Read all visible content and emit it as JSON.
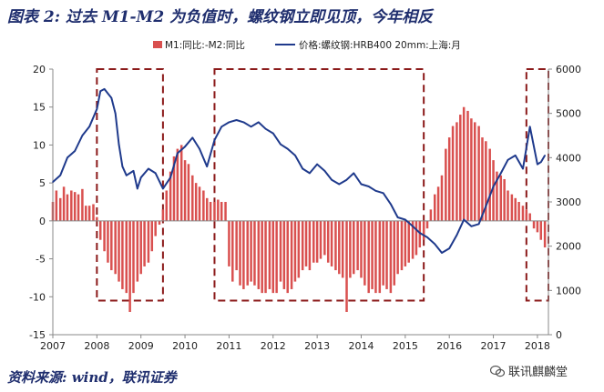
{
  "title": "图表 2:  过去 M1-M2 为负值时，螺纹钢立即见顶，今年相反",
  "source": "资料来源: wind，联讯证券",
  "watermark": "联讯麒麟堂",
  "colors": {
    "bar": "#d9504f",
    "line": "#1f3a8c",
    "box": "#8b1a1a",
    "axis": "#888888"
  },
  "chart_data": {
    "type": "bar+line",
    "title": "",
    "legend": [
      "M1:同比:-M2:同比",
      "价格:螺纹钢:HRB400  20mm:上海:月"
    ],
    "legend_position": "top",
    "x_ticks": [
      "2007",
      "2008",
      "2009",
      "2010",
      "2011",
      "2012",
      "2013",
      "2014",
      "2015",
      "2016",
      "2017",
      "2018"
    ],
    "x_range": [
      2007.0,
      2018.25
    ],
    "y_left": {
      "ticks": [
        20,
        15,
        10,
        5,
        0,
        -5,
        -10,
        -15
      ],
      "range": [
        -15,
        20
      ]
    },
    "y_right": {
      "ticks": [
        6000,
        5000,
        4000,
        3000,
        2000,
        1000,
        0
      ],
      "range": [
        0,
        6000
      ]
    },
    "dashed_boxes": [
      {
        "x": [
          2008.0,
          2009.5
        ],
        "y": [
          -10.5,
          20
        ]
      },
      {
        "x": [
          2010.67,
          2015.42
        ],
        "y": [
          -10.5,
          20
        ]
      },
      {
        "x": [
          2017.75,
          2018.25
        ],
        "y": [
          -10.5,
          20
        ]
      }
    ],
    "series": [
      {
        "name": "M1:同比:-M2:同比",
        "kind": "bar",
        "x": [
          2007.0,
          2007.08,
          2007.17,
          2007.25,
          2007.33,
          2007.42,
          2007.5,
          2007.58,
          2007.67,
          2007.75,
          2007.83,
          2007.92,
          2008.0,
          2008.08,
          2008.17,
          2008.25,
          2008.33,
          2008.42,
          2008.5,
          2008.58,
          2008.67,
          2008.75,
          2008.83,
          2008.92,
          2009.0,
          2009.08,
          2009.17,
          2009.25,
          2009.33,
          2009.42,
          2009.5,
          2009.58,
          2009.67,
          2009.75,
          2009.83,
          2009.92,
          2010.0,
          2010.08,
          2010.17,
          2010.25,
          2010.33,
          2010.42,
          2010.5,
          2010.58,
          2010.67,
          2010.75,
          2010.83,
          2010.92,
          2011.0,
          2011.08,
          2011.17,
          2011.25,
          2011.33,
          2011.42,
          2011.5,
          2011.58,
          2011.67,
          2011.75,
          2011.83,
          2011.92,
          2012.0,
          2012.08,
          2012.17,
          2012.25,
          2012.33,
          2012.42,
          2012.5,
          2012.58,
          2012.67,
          2012.75,
          2012.83,
          2012.92,
          2013.0,
          2013.08,
          2013.17,
          2013.25,
          2013.33,
          2013.42,
          2013.5,
          2013.58,
          2013.67,
          2013.75,
          2013.83,
          2013.92,
          2014.0,
          2014.08,
          2014.17,
          2014.25,
          2014.33,
          2014.42,
          2014.5,
          2014.58,
          2014.67,
          2014.75,
          2014.83,
          2014.92,
          2015.0,
          2015.08,
          2015.17,
          2015.25,
          2015.33,
          2015.42,
          2015.5,
          2015.58,
          2015.67,
          2015.75,
          2015.83,
          2015.92,
          2016.0,
          2016.08,
          2016.17,
          2016.25,
          2016.33,
          2016.42,
          2016.5,
          2016.58,
          2016.67,
          2016.75,
          2016.83,
          2016.92,
          2017.0,
          2017.08,
          2017.17,
          2017.25,
          2017.33,
          2017.42,
          2017.5,
          2017.58,
          2017.67,
          2017.75,
          2017.83,
          2017.92,
          2018.0,
          2018.08,
          2018.17
        ],
        "values": [
          2.5,
          4.0,
          3.0,
          4.5,
          3.5,
          4.0,
          3.8,
          3.5,
          4.2,
          2.0,
          2.0,
          2.2,
          0.5,
          -2.5,
          -4.0,
          -5.5,
          -6.5,
          -7.0,
          -8.0,
          -9.0,
          -9.5,
          -12.0,
          -9.5,
          -8.0,
          -7.0,
          -6.0,
          -5.5,
          -4.0,
          -2.0,
          -0.5,
          1.5,
          4.0,
          6.5,
          8.5,
          9.5,
          10.0,
          8.0,
          7.5,
          6.0,
          5.0,
          4.5,
          4.0,
          3.0,
          2.5,
          2.5,
          2.8,
          2.5,
          2.5,
          -6.0,
          -8.0,
          -6.5,
          -8.5,
          -9.0,
          -8.5,
          -8.0,
          -8.5,
          -9.0,
          -9.5,
          -9.5,
          -9.0,
          -9.5,
          -9.5,
          -8.0,
          -9.0,
          -9.5,
          -9.0,
          -8.0,
          -7.5,
          -6.5,
          -6.0,
          -6.5,
          -5.5,
          -5.5,
          -5.0,
          -4.5,
          -5.5,
          -6.0,
          -6.5,
          -7.0,
          -7.5,
          -12.0,
          -7.5,
          -7.0,
          -6.5,
          -7.5,
          -8.5,
          -9.5,
          -9.0,
          -9.5,
          -9.5,
          -8.5,
          -9.0,
          -9.5,
          -8.5,
          -7.0,
          -6.5,
          -6.0,
          -5.5,
          -5.0,
          -4.5,
          -3.5,
          -2.5,
          -1.0,
          1.5,
          3.5,
          4.5,
          6.0,
          9.5,
          11.0,
          12.5,
          13.0,
          14.0,
          15.0,
          14.5,
          13.5,
          13.0,
          12.5,
          11.0,
          10.5,
          9.5,
          8.0,
          6.5,
          6.0,
          5.5,
          4.0,
          3.5,
          3.0,
          2.5,
          2.0,
          1.5,
          1.0,
          -1.0,
          -1.5,
          -2.5,
          -3.5
        ]
      },
      {
        "name": "价格:螺纹钢:HRB400  20mm:上海:月",
        "kind": "line",
        "axis": "right",
        "x": [
          2007.0,
          2007.17,
          2007.33,
          2007.5,
          2007.67,
          2007.83,
          2008.0,
          2008.08,
          2008.17,
          2008.25,
          2008.33,
          2008.42,
          2008.5,
          2008.58,
          2008.67,
          2008.75,
          2008.83,
          2008.92,
          2009.0,
          2009.17,
          2009.33,
          2009.5,
          2009.67,
          2009.83,
          2010.0,
          2010.17,
          2010.33,
          2010.5,
          2010.67,
          2010.83,
          2011.0,
          2011.17,
          2011.33,
          2011.5,
          2011.67,
          2011.83,
          2012.0,
          2012.17,
          2012.33,
          2012.5,
          2012.67,
          2012.83,
          2013.0,
          2013.17,
          2013.33,
          2013.5,
          2013.67,
          2013.83,
          2014.0,
          2014.17,
          2014.33,
          2014.5,
          2014.67,
          2014.83,
          2015.0,
          2015.17,
          2015.33,
          2015.5,
          2015.67,
          2015.83,
          2016.0,
          2016.17,
          2016.33,
          2016.5,
          2016.67,
          2016.83,
          2017.0,
          2017.17,
          2017.33,
          2017.5,
          2017.67,
          2017.83,
          2018.0,
          2018.08,
          2018.17
        ],
        "values": [
          3450,
          3600,
          4000,
          4150,
          4500,
          4700,
          5100,
          5500,
          5550,
          5450,
          5350,
          5000,
          4300,
          3800,
          3600,
          3650,
          3700,
          3300,
          3550,
          3750,
          3650,
          3300,
          3550,
          4100,
          4250,
          4450,
          4200,
          3800,
          4400,
          4700,
          4800,
          4850,
          4800,
          4700,
          4800,
          4650,
          4550,
          4300,
          4200,
          4050,
          3750,
          3650,
          3850,
          3700,
          3500,
          3400,
          3500,
          3650,
          3400,
          3350,
          3250,
          3200,
          2950,
          2650,
          2600,
          2450,
          2300,
          2200,
          2050,
          1850,
          1950,
          2250,
          2600,
          2450,
          2500,
          2900,
          3350,
          3650,
          3950,
          4050,
          3750,
          4700,
          3850,
          3900,
          4050
        ]
      }
    ]
  }
}
